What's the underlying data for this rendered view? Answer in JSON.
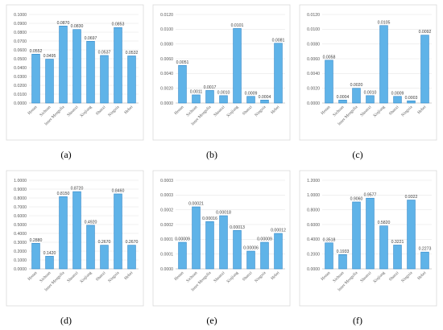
{
  "chart_data": [
    {
      "type": "bar",
      "panel_label": "(a)",
      "categories": [
        "Henan",
        "Sichuan",
        "Inner Mongolia",
        "Shaanxi",
        "Xinjiang",
        "Shanxi",
        "Ningxia",
        "Hebei"
      ],
      "values": [
        0.0552,
        0.0495,
        0.087,
        0.083,
        0.0697,
        0.0537,
        0.0853,
        0.0532
      ],
      "value_labels": [
        "0.0552",
        "0.0495",
        "0.0870",
        "0.0830",
        "0.0697",
        "0.0537",
        "0.0853",
        "0.0532"
      ],
      "ylim": [
        0,
        0.1
      ],
      "yticks": [
        "0.0000",
        "0.0100",
        "0.0200",
        "0.0300",
        "0.0400",
        "0.0500",
        "0.0600",
        "0.0700",
        "0.0800",
        "0.0900",
        "0.1000"
      ],
      "grid": true
    },
    {
      "type": "bar",
      "panel_label": "(b)",
      "categories": [
        "Henan",
        "Sichuan",
        "Inner Mongolia",
        "Shaanxi",
        "Xinjiang",
        "Shanxi",
        "Ningxia",
        "Hebei"
      ],
      "values": [
        0.0051,
        0.0011,
        0.0017,
        0.001,
        0.0101,
        0.0009,
        0.0004,
        0.0081
      ],
      "value_labels": [
        "0.0051",
        "0.0011",
        "0.0017",
        "0.0010",
        "0.0101",
        "0.0009",
        "0.0004",
        "0.0081"
      ],
      "ylim": [
        0,
        0.012
      ],
      "yticks": [
        "0.0000",
        "0.0020",
        "0.0040",
        "0.0060",
        "0.0080",
        "0.0100",
        "0.0120"
      ],
      "grid": true
    },
    {
      "type": "bar",
      "panel_label": "(c)",
      "categories": [
        "Henan",
        "Sichuan",
        "Inner Mongolia",
        "Shaanxi",
        "Xinjiang",
        "Shanxi",
        "Ningxia",
        "Hebei"
      ],
      "values": [
        0.0058,
        0.0004,
        0.002,
        0.001,
        0.0105,
        0.0009,
        0.0003,
        0.0092
      ],
      "value_labels": [
        "0.0058",
        "0.0004",
        "0.0020",
        "0.0010",
        "0.0105",
        "0.0009",
        "0.0003",
        "0.0092"
      ],
      "ylim": [
        0,
        0.012
      ],
      "yticks": [
        "0.0000",
        "0.0020",
        "0.0040",
        "0.0060",
        "0.0080",
        "0.0100",
        "0.0120"
      ],
      "grid": true
    },
    {
      "type": "bar",
      "panel_label": "(d)",
      "categories": [
        "Henan",
        "Sichuan",
        "Inner Mongolia",
        "Shaanxi",
        "Xinjiang",
        "Shanxi",
        "Ningxia",
        "Hebei"
      ],
      "values": [
        0.288,
        0.142,
        0.815,
        0.872,
        0.492,
        0.267,
        0.846,
        0.267
      ],
      "value_labels": [
        "0.2880",
        "0.1420",
        "0.8150",
        "0.8720",
        "0.4920",
        "0.2670",
        "0.8460",
        "0.2670"
      ],
      "ylim": [
        0,
        1
      ],
      "yticks": [
        "0.0000",
        "0.1000",
        "0.2000",
        "0.3000",
        "0.4000",
        "0.5000",
        "0.6000",
        "0.7000",
        "0.8000",
        "0.9000",
        "1.0000"
      ],
      "grid": true
    },
    {
      "type": "bar",
      "panel_label": "(e)",
      "categories": [
        "Henan",
        "Sichuan",
        "Inner Mongolia",
        "Shaanxi",
        "Xinjiang",
        "Shanxi",
        "Ningxia",
        "Hebei"
      ],
      "values": [
        9e-05,
        0.00021,
        0.00016,
        0.00018,
        0.00013,
        6e-05,
        9e-05,
        0.00012
      ],
      "value_labels": [
        "0.00009",
        "0.00021",
        "0.00016",
        "0.00018",
        "0.00013",
        "0.00006",
        "0.00009",
        "0.00012"
      ],
      "ylim": [
        0,
        0.0003
      ],
      "yticks": [
        "0.0000",
        "0.0001",
        "0.0001",
        "0.0002",
        "0.0002",
        "0.0003",
        "0.0003"
      ],
      "grid": true
    },
    {
      "type": "bar",
      "panel_label": "(f)",
      "categories": [
        "Henan",
        "Sichuan",
        "Inner Mongolia",
        "Shaanxi",
        "Xinjiang",
        "Shanxi",
        "Ningxia",
        "Hebei"
      ],
      "values": [
        0.3518,
        0.1933,
        0.906,
        0.9577,
        0.582,
        0.3221,
        0.9322,
        0.2273
      ],
      "value_labels": [
        "0.3518",
        "0.1933",
        "0.9060",
        "0.9577",
        "0.5820",
        "0.3221",
        "0.9322",
        "0.2273"
      ],
      "ylim": [
        0,
        1.2
      ],
      "yticks": [
        "0.0000",
        "0.2000",
        "0.4000",
        "0.6000",
        "0.8000",
        "1.0000",
        "1.2000"
      ],
      "grid": true
    }
  ],
  "colors": {
    "bar_fill": "#5fb3e8",
    "bar_stroke": "#2e86c9",
    "grid": "#e6e6e6",
    "frame": "#d9d9d9"
  }
}
